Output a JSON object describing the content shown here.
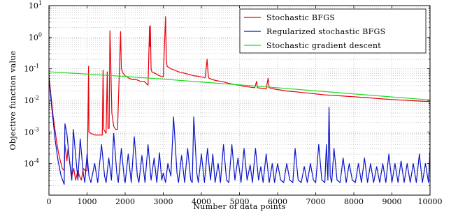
{
  "chart_data": {
    "type": "line",
    "title": "",
    "xlabel": "Number of data points",
    "ylabel": "Objective function value",
    "xlim": [
      0,
      10000
    ],
    "ylim": [
      1e-05,
      10
    ],
    "yscale": "log",
    "grid": true,
    "legend_position": "top-right",
    "x_ticks": [
      0,
      1000,
      2000,
      3000,
      4000,
      5000,
      6000,
      7000,
      8000,
      9000,
      10000
    ],
    "x_tick_labels": [
      "0",
      "1000",
      "2000",
      "3000",
      "4000",
      "5000",
      "6000",
      "7000",
      "8000",
      "9000",
      "10000"
    ],
    "y_ticks": [
      {
        "value": 0.0001,
        "exp": "-4"
      },
      {
        "value": 0.001,
        "exp": "-3"
      },
      {
        "value": 0.01,
        "exp": "-2"
      },
      {
        "value": 0.1,
        "exp": "-1"
      },
      {
        "value": 1,
        "exp": "0"
      },
      {
        "value": 10,
        "exp": "1"
      }
    ],
    "y_tick_base": "10",
    "series": [
      {
        "name": "Stochastic BFGS",
        "color": "#e8000b",
        "points": [
          [
            0,
            0.06
          ],
          [
            100,
            0.004
          ],
          [
            200,
            0.0005
          ],
          [
            250,
            0.00022
          ],
          [
            300,
            0.00012
          ],
          [
            350,
            7e-05
          ],
          [
            400,
            6e-05
          ],
          [
            420,
            0.0004
          ],
          [
            470,
            0.00012
          ],
          [
            500,
            0.0003
          ],
          [
            560,
            8e-05
          ],
          [
            600,
            4e-05
          ],
          [
            650,
            7e-05
          ],
          [
            700,
            3e-05
          ],
          [
            760,
            6e-05
          ],
          [
            800,
            4e-05
          ],
          [
            850,
            3e-05
          ],
          [
            900,
            7e-05
          ],
          [
            950,
            6e-05
          ],
          [
            1000,
            6e-05
          ],
          [
            1020,
            0.0009
          ],
          [
            1040,
            0.12
          ],
          [
            1050,
            0.001
          ],
          [
            1100,
            0.0009
          ],
          [
            1200,
            0.0008
          ],
          [
            1300,
            0.0008
          ],
          [
            1400,
            0.0008
          ],
          [
            1420,
            0.09
          ],
          [
            1440,
            0.0012
          ],
          [
            1500,
            0.0009
          ],
          [
            1530,
            0.08
          ],
          [
            1550,
            0.0013
          ],
          [
            1580,
            0.0013
          ],
          [
            1600,
            1.6
          ],
          [
            1620,
            0.2
          ],
          [
            1650,
            0.004
          ],
          [
            1700,
            0.0015
          ],
          [
            1750,
            0.0012
          ],
          [
            1800,
            0.0012
          ],
          [
            1880,
            1.5
          ],
          [
            1900,
            0.1
          ],
          [
            1950,
            0.07
          ],
          [
            2000,
            0.06
          ],
          [
            2100,
            0.05
          ],
          [
            2200,
            0.045
          ],
          [
            2300,
            0.045
          ],
          [
            2400,
            0.04
          ],
          [
            2500,
            0.04
          ],
          [
            2600,
            0.03
          ],
          [
            2640,
            2.2
          ],
          [
            2650,
            0.5
          ],
          [
            2660,
            2.3
          ],
          [
            2680,
            0.1
          ],
          [
            2700,
            0.08
          ],
          [
            2800,
            0.07
          ],
          [
            2900,
            0.06
          ],
          [
            3000,
            0.055
          ],
          [
            3060,
            4.5
          ],
          [
            3080,
            0.2
          ],
          [
            3100,
            0.12
          ],
          [
            3200,
            0.1
          ],
          [
            3300,
            0.09
          ],
          [
            3400,
            0.08
          ],
          [
            3500,
            0.075
          ],
          [
            3600,
            0.07
          ],
          [
            3700,
            0.065
          ],
          [
            3800,
            0.06
          ],
          [
            3900,
            0.058
          ],
          [
            4000,
            0.055
          ],
          [
            4100,
            0.052
          ],
          [
            4150,
            0.2
          ],
          [
            4180,
            0.06
          ],
          [
            4200,
            0.05
          ],
          [
            4300,
            0.045
          ],
          [
            4400,
            0.042
          ],
          [
            4500,
            0.04
          ],
          [
            4600,
            0.038
          ],
          [
            4700,
            0.035
          ],
          [
            4800,
            0.033
          ],
          [
            4900,
            0.031
          ],
          [
            5000,
            0.03
          ],
          [
            5100,
            0.028
          ],
          [
            5200,
            0.027
          ],
          [
            5300,
            0.026
          ],
          [
            5400,
            0.025
          ],
          [
            5450,
            0.04
          ],
          [
            5470,
            0.025
          ],
          [
            5600,
            0.024
          ],
          [
            5700,
            0.023
          ],
          [
            5750,
            0.05
          ],
          [
            5780,
            0.025
          ],
          [
            5900,
            0.023
          ],
          [
            6000,
            0.022
          ],
          [
            6100,
            0.021
          ],
          [
            6200,
            0.02
          ],
          [
            6400,
            0.019
          ],
          [
            6600,
            0.018
          ],
          [
            6800,
            0.017
          ],
          [
            7000,
            0.016
          ],
          [
            7200,
            0.015
          ],
          [
            7400,
            0.0145
          ],
          [
            7600,
            0.014
          ],
          [
            7800,
            0.0135
          ],
          [
            8000,
            0.013
          ],
          [
            8200,
            0.0125
          ],
          [
            8400,
            0.012
          ],
          [
            8600,
            0.0115
          ],
          [
            8800,
            0.011
          ],
          [
            9000,
            0.0107
          ],
          [
            9200,
            0.0103
          ],
          [
            9400,
            0.01
          ],
          [
            9600,
            0.0097
          ],
          [
            9800,
            0.0094
          ],
          [
            10000,
            0.0092
          ]
        ]
      },
      {
        "name": "Regularized stochastic BFGS",
        "color": "#0a14c8",
        "points": [
          [
            0,
            0.05
          ],
          [
            80,
            0.005
          ],
          [
            160,
            0.0006
          ],
          [
            240,
            0.00012
          ],
          [
            320,
            4e-05
          ],
          [
            400,
            2.2e-05
          ],
          [
            420,
            0.0018
          ],
          [
            470,
            0.0009
          ],
          [
            540,
            0.00012
          ],
          [
            600,
            3e-05
          ],
          [
            640,
            0.0012
          ],
          [
            720,
            0.0001
          ],
          [
            760,
            3e-05
          ],
          [
            820,
            0.0006
          ],
          [
            900,
            5e-05
          ],
          [
            940,
            2.5e-05
          ],
          [
            1000,
            0.0002
          ],
          [
            1050,
            4e-05
          ],
          [
            1100,
            2.5e-05
          ],
          [
            1200,
            0.0001
          ],
          [
            1280,
            2.5e-05
          ],
          [
            1380,
            0.0004
          ],
          [
            1460,
            4e-05
          ],
          [
            1500,
            2.5e-05
          ],
          [
            1570,
            0.00015
          ],
          [
            1640,
            3e-05
          ],
          [
            1700,
            0.0009
          ],
          [
            1780,
            5e-05
          ],
          [
            1820,
            2.5e-05
          ],
          [
            1900,
            0.0003
          ],
          [
            1980,
            3e-05
          ],
          [
            2000,
            2.5e-05
          ],
          [
            2080,
            0.0002
          ],
          [
            2160,
            2.5e-05
          ],
          [
            2240,
            0.0007
          ],
          [
            2320,
            4e-05
          ],
          [
            2360,
            2.5e-05
          ],
          [
            2440,
            0.00018
          ],
          [
            2520,
            2.5e-05
          ],
          [
            2600,
            0.0004
          ],
          [
            2680,
            3e-05
          ],
          [
            2760,
            0.00015
          ],
          [
            2830,
            2.5e-05
          ],
          [
            2900,
            0.00022
          ],
          [
            2960,
            3e-05
          ],
          [
            3000,
            5e-05
          ],
          [
            3060,
            2.5e-05
          ],
          [
            3120,
            0.0001
          ],
          [
            3200,
            4e-05
          ],
          [
            3270,
            0.003
          ],
          [
            3360,
            5e-05
          ],
          [
            3400,
            2.5e-05
          ],
          [
            3480,
            0.00018
          ],
          [
            3560,
            2.5e-05
          ],
          [
            3640,
            0.0003
          ],
          [
            3720,
            3e-05
          ],
          [
            3760,
            2.5e-05
          ],
          [
            3800,
            0.003
          ],
          [
            3880,
            5e-05
          ],
          [
            3920,
            2.5e-05
          ],
          [
            4000,
            0.0002
          ],
          [
            4080,
            2.5e-05
          ],
          [
            4160,
            0.0003
          ],
          [
            4240,
            3e-05
          ],
          [
            4300,
            0.0002
          ],
          [
            4360,
            2.5e-05
          ],
          [
            4440,
            0.0001
          ],
          [
            4500,
            2.5e-05
          ],
          [
            4580,
            0.0004
          ],
          [
            4660,
            3e-05
          ],
          [
            4720,
            2.5e-05
          ],
          [
            4800,
            0.0004
          ],
          [
            4880,
            3e-05
          ],
          [
            4960,
            0.00015
          ],
          [
            5040,
            2.5e-05
          ],
          [
            5120,
            0.0003
          ],
          [
            5200,
            3e-05
          ],
          [
            5280,
            9e-05
          ],
          [
            5340,
            2.5e-05
          ],
          [
            5420,
            0.0003
          ],
          [
            5500,
            3e-05
          ],
          [
            5560,
            8e-05
          ],
          [
            5620,
            2.5e-05
          ],
          [
            5700,
            0.0002
          ],
          [
            5780,
            2.5e-05
          ],
          [
            5860,
            0.0001
          ],
          [
            5920,
            2.5e-05
          ],
          [
            6000,
            0.0001
          ],
          [
            6080,
            3e-05
          ],
          [
            6160,
            2.5e-05
          ],
          [
            6240,
            0.0001
          ],
          [
            6320,
            3e-05
          ],
          [
            6400,
            2.5e-05
          ],
          [
            6460,
            0.0003
          ],
          [
            6540,
            3e-05
          ],
          [
            6620,
            2.5e-05
          ],
          [
            6700,
            8e-05
          ],
          [
            6780,
            2.5e-05
          ],
          [
            6860,
            0.0001
          ],
          [
            6940,
            3e-05
          ],
          [
            7000,
            2.5e-05
          ],
          [
            7080,
            0.0004
          ],
          [
            7160,
            3e-05
          ],
          [
            7240,
            2.5e-05
          ],
          [
            7280,
            0.0004
          ],
          [
            7320,
            3e-05
          ],
          [
            7350,
            0.006
          ],
          [
            7380,
            4e-05
          ],
          [
            7420,
            2.5e-05
          ],
          [
            7480,
            0.0003
          ],
          [
            7560,
            3e-05
          ],
          [
            7640,
            2.5e-05
          ],
          [
            7720,
            0.00015
          ],
          [
            7800,
            2.5e-05
          ],
          [
            7880,
            0.0001
          ],
          [
            7960,
            3e-05
          ],
          [
            8040,
            2.5e-05
          ],
          [
            8120,
            0.0001
          ],
          [
            8200,
            2.5e-05
          ],
          [
            8280,
            0.00015
          ],
          [
            8360,
            2.5e-05
          ],
          [
            8440,
            0.0001
          ],
          [
            8520,
            2.5e-05
          ],
          [
            8600,
            8e-05
          ],
          [
            8680,
            2.5e-05
          ],
          [
            8760,
            0.0001
          ],
          [
            8840,
            2.5e-05
          ],
          [
            8920,
            0.0002
          ],
          [
            9000,
            2.5e-05
          ],
          [
            9080,
            0.0001
          ],
          [
            9160,
            2.5e-05
          ],
          [
            9240,
            0.00012
          ],
          [
            9320,
            2.5e-05
          ],
          [
            9400,
            0.0001
          ],
          [
            9480,
            2.5e-05
          ],
          [
            9560,
            0.0001
          ],
          [
            9640,
            2.5e-05
          ],
          [
            9720,
            0.0002
          ],
          [
            9800,
            2.5e-05
          ],
          [
            9880,
            0.0001
          ],
          [
            9960,
            2.5e-05
          ],
          [
            10000,
            0.0003
          ]
        ]
      },
      {
        "name": "Stochastic gradient descent",
        "color": "#22dd22",
        "points": [
          [
            0,
            0.08
          ],
          [
            1000,
            0.068
          ],
          [
            2000,
            0.057
          ],
          [
            3000,
            0.047
          ],
          [
            4000,
            0.038
          ],
          [
            5000,
            0.031
          ],
          [
            6000,
            0.025
          ],
          [
            7000,
            0.02
          ],
          [
            8000,
            0.016
          ],
          [
            9000,
            0.0128
          ],
          [
            10000,
            0.0103
          ]
        ]
      }
    ]
  }
}
